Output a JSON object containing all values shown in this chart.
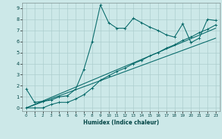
{
  "xlabel": "Humidex (Indice chaleur)",
  "bg_color": "#cce8e8",
  "grid_color": "#aacccc",
  "line_color": "#006666",
  "xlim": [
    -0.5,
    23.5
  ],
  "ylim": [
    -0.3,
    9.5
  ],
  "main_x": [
    0,
    1,
    2,
    3,
    4,
    5,
    6,
    7,
    8,
    9,
    10,
    11,
    12,
    13,
    14,
    15,
    16,
    17,
    18,
    19,
    20,
    21,
    22,
    23
  ],
  "main_y": [
    1.7,
    0.5,
    0.6,
    0.7,
    1.0,
    1.1,
    1.7,
    3.5,
    6.0,
    9.3,
    7.7,
    7.2,
    7.2,
    8.1,
    7.7,
    7.3,
    7.0,
    6.6,
    6.4,
    7.6,
    5.9,
    6.3,
    8.0,
    7.9
  ],
  "line2_x": [
    0,
    1,
    2,
    3,
    4,
    5,
    6,
    7,
    8,
    9,
    10,
    11,
    12,
    13,
    14,
    15,
    16,
    17,
    18,
    19,
    20,
    21,
    22,
    23
  ],
  "line2_y": [
    0.0,
    0.0,
    0.0,
    0.3,
    0.5,
    0.5,
    0.8,
    1.2,
    1.8,
    2.5,
    2.9,
    3.3,
    3.6,
    4.0,
    4.3,
    4.7,
    5.0,
    5.4,
    5.7,
    6.1,
    6.4,
    6.8,
    7.1,
    7.5
  ],
  "line3_x": [
    0,
    23
  ],
  "line3_y": [
    0.0,
    7.2
  ],
  "line4_x": [
    0,
    23
  ],
  "line4_y": [
    0.0,
    6.3
  ],
  "xticks": [
    0,
    1,
    2,
    3,
    4,
    5,
    6,
    7,
    8,
    9,
    10,
    11,
    12,
    13,
    14,
    15,
    16,
    17,
    18,
    19,
    20,
    21,
    22,
    23
  ],
  "yticks": [
    0,
    1,
    2,
    3,
    4,
    5,
    6,
    7,
    8,
    9
  ]
}
